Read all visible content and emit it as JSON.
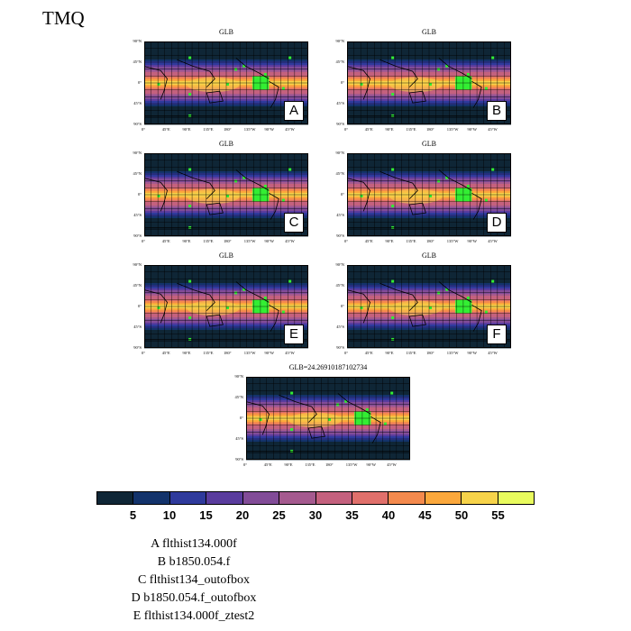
{
  "page_title": "TMQ",
  "chart_data": {
    "type": "heatmap",
    "variable": "TMQ",
    "colorbar": {
      "levels": [
        5,
        10,
        15,
        20,
        25,
        30,
        35,
        40,
        45,
        50,
        55
      ],
      "colors": [
        "#0f2636",
        "#13336b",
        "#2f3a9c",
        "#5a3c9e",
        "#824c98",
        "#a55a8f",
        "#c4617e",
        "#e0706b",
        "#f48a4d",
        "#fba83c",
        "#f7d34a",
        "#e9fb5e"
      ]
    },
    "lat_ticks": [
      "90°N",
      "45°N",
      "0°",
      "45°S",
      "90°S"
    ],
    "lon_ticks": [
      "0°",
      "45°E",
      "90°E",
      "135°E",
      "180°",
      "135°W",
      "90°W",
      "45°W"
    ],
    "panels": [
      {
        "title": "GLB",
        "label": "A"
      },
      {
        "title": "GLB",
        "label": "B"
      },
      {
        "title": "GLB",
        "label": "C"
      },
      {
        "title": "GLB",
        "label": "D"
      },
      {
        "title": "GLB",
        "label": "E"
      },
      {
        "title": "GLB",
        "label": "F"
      },
      {
        "title": "GLB=24.26910187102734",
        "label": ""
      }
    ]
  },
  "legend": [
    "A  flthist134.000f",
    "B  b1850.054.f",
    "C  flthist134_outofbox",
    "D  b1850.054.f_outofbox",
    "E  flthist134.000f_ztest2"
  ]
}
